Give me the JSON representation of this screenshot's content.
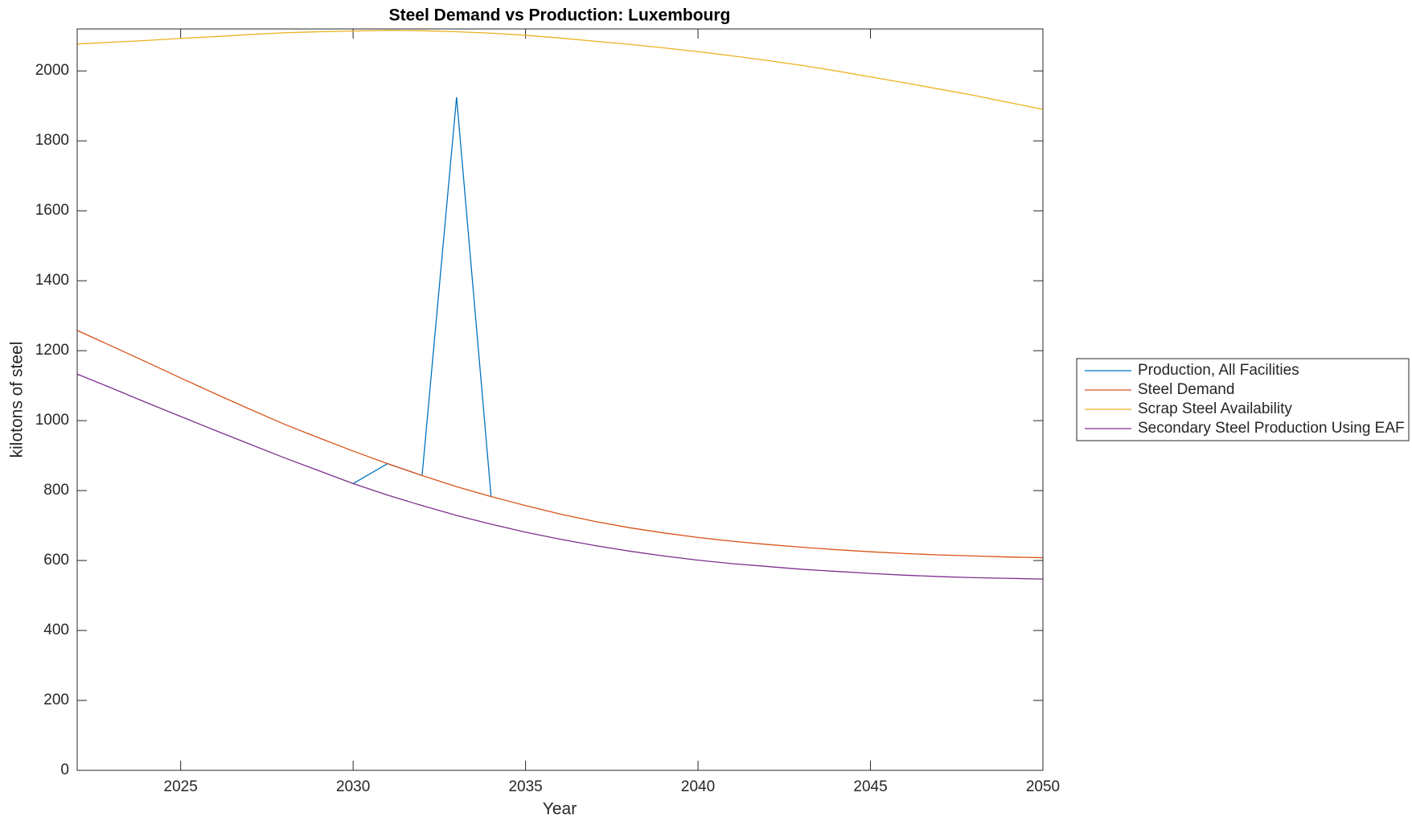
{
  "chart_data": {
    "type": "line",
    "title": "Steel Demand vs Production: Luxembourg",
    "x_label": "Year",
    "y_label": "kilotons of steel",
    "x": [
      2022,
      2023,
      2024,
      2025,
      2026,
      2027,
      2028,
      2029,
      2030,
      2031,
      2032,
      2033,
      2034,
      2035,
      2036,
      2037,
      2038,
      2039,
      2040,
      2041,
      2042,
      2043,
      2044,
      2045,
      2046,
      2047,
      2048,
      2049,
      2050
    ],
    "series": [
      {
        "name": "Production, All Facilities",
        "color": "#0072bd",
        "values": [
          null,
          null,
          null,
          null,
          null,
          null,
          null,
          null,
          820,
          877,
          843,
          1925,
          783,
          null,
          null,
          null,
          null,
          null,
          null,
          null,
          null,
          null,
          null,
          null,
          null,
          null,
          null,
          null,
          null
        ]
      },
      {
        "name": "Steel Demand",
        "color": "#d95319",
        "values": [
          1258,
          1213,
          1168,
          1122,
          1077,
          1033,
          990,
          951,
          913,
          877,
          843,
          811,
          783,
          757,
          733,
          712,
          694,
          679,
          666,
          655,
          646,
          638,
          631,
          625,
          620,
          616,
          613,
          610,
          608
        ]
      },
      {
        "name": "Scrap Steel Availability",
        "color": "#edb120",
        "values": [
          2077,
          2082,
          2087,
          2093,
          2098,
          2104,
          2109,
          2112,
          2114,
          2116,
          2115,
          2112,
          2108,
          2102,
          2094,
          2085,
          2076,
          2066,
          2055,
          2043,
          2030,
          2016,
          2000,
          1983,
          1966,
          1948,
          1930,
          1910,
          1890
        ]
      },
      {
        "name": "Secondary Steel Production Using EAF",
        "color": "#7e2f8e",
        "values": [
          1133,
          1093,
          1052,
          1012,
          972,
          933,
          894,
          857,
          820,
          787,
          757,
          729,
          704,
          681,
          661,
          643,
          627,
          613,
          601,
          591,
          583,
          575,
          569,
          563,
          558,
          554,
          551,
          549,
          547
        ]
      }
    ],
    "xlim": [
      2022,
      2050
    ],
    "xticks": [
      2025,
      2030,
      2035,
      2040,
      2045,
      2050
    ],
    "ylim": [
      0,
      2120
    ],
    "yticks": [
      0,
      200,
      400,
      600,
      800,
      1000,
      1200,
      1400,
      1600,
      1800,
      2000
    ],
    "grid": false,
    "legend": "east-outside"
  }
}
